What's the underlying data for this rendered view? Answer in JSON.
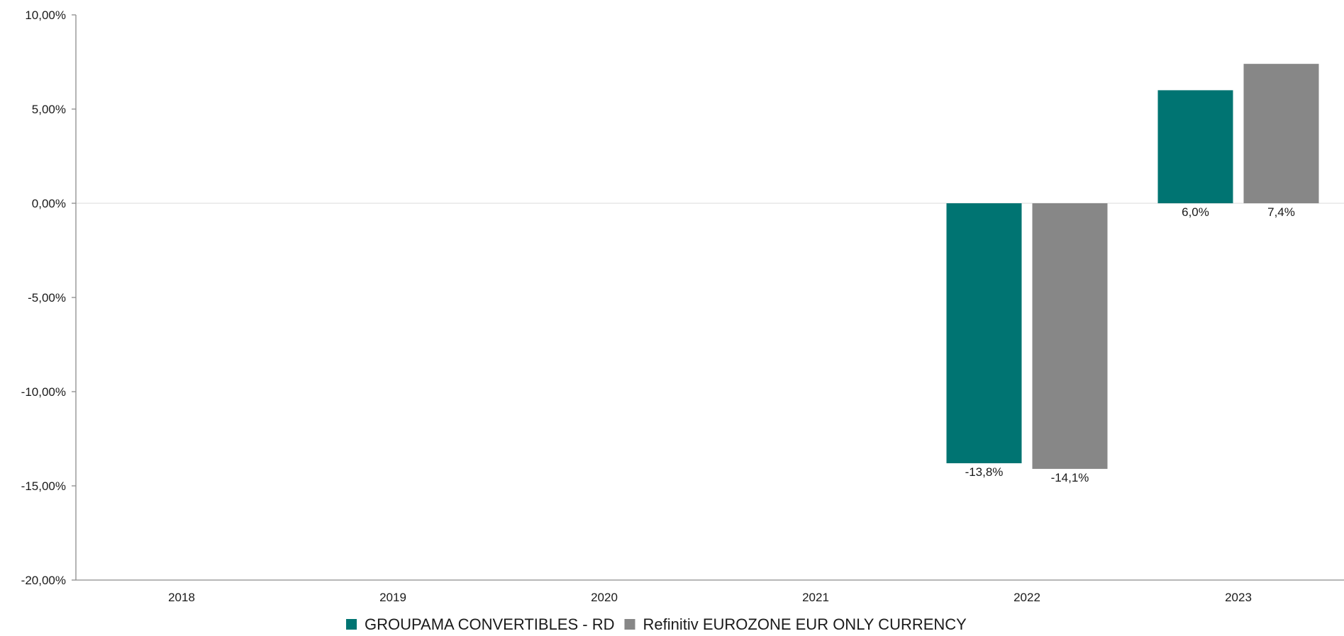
{
  "chart_data": {
    "type": "bar",
    "title": "",
    "xlabel": "",
    "ylabel": "",
    "categories": [
      "2018",
      "2019",
      "2020",
      "2021",
      "2022",
      "2023"
    ],
    "ylim": [
      -20,
      10
    ],
    "yticks": [
      10,
      5,
      0,
      -5,
      -10,
      -15,
      -20
    ],
    "ytick_labels": [
      "10,00%",
      "5,00%",
      "0,00%",
      "-5,00%",
      "-10,00%",
      "-15,00%",
      "-20,00%"
    ],
    "grid": false,
    "legend_position": "bottom",
    "series": [
      {
        "name": "GROUPAMA CONVERTIBLES - RD",
        "color": "#007472",
        "values": [
          null,
          null,
          null,
          null,
          -13.8,
          6.0
        ],
        "labels": [
          null,
          null,
          null,
          null,
          "-13,8%",
          "6,0%"
        ]
      },
      {
        "name": "Refinitiv EUROZONE EUR ONLY CURRENCY",
        "color": "#878787",
        "values": [
          null,
          null,
          null,
          null,
          -14.1,
          7.4
        ],
        "labels": [
          null,
          null,
          null,
          null,
          "-14,1%",
          "7,4%"
        ]
      }
    ]
  }
}
